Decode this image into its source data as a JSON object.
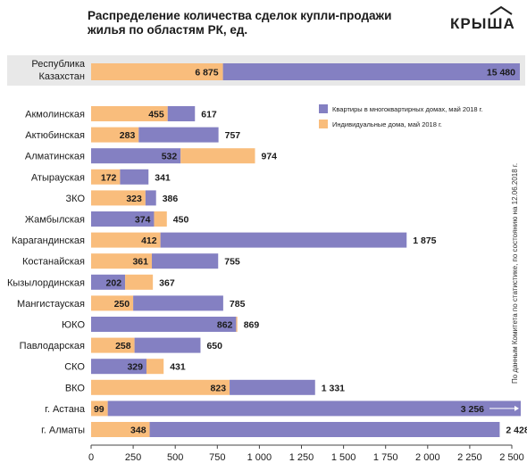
{
  "title_line1": "Распределение количества сделок купли-продажи",
  "title_line2": "жилья по областям РК, ед.",
  "logo_text": "КРЫША",
  "source_note": "По данным Комитета по статистике, по состоянию на 12.06.2018 г.",
  "colors": {
    "apartments": "#8480c2",
    "houses": "#f9bd7c",
    "republic_band": "#e8e8e8",
    "axis": "#444444"
  },
  "chart_data": {
    "type": "bar",
    "orientation": "horizontal",
    "stacked": true,
    "title": "Распределение количества сделок купли-продажи жилья по областям РК, ед.",
    "xlim": [
      0,
      2500
    ],
    "x_ticks": [
      0,
      250,
      500,
      750,
      1000,
      1250,
      1500,
      1750,
      2000,
      2250,
      2500
    ],
    "x_tick_labels": [
      "0",
      "250",
      "500",
      "750",
      "1 000",
      "1 250",
      "1 500",
      "1 750",
      "2 000",
      "2 250",
      "2 500"
    ],
    "legend_position": "top-right",
    "series": [
      {
        "key": "apartments",
        "name": "Квартиры в многоквартирных домах, май 2018 г."
      },
      {
        "key": "houses",
        "name": "Индивидуальные дома, май 2018 г."
      }
    ],
    "republic": {
      "label_lines": [
        "Республика",
        "Казахстан"
      ],
      "houses": 6875,
      "apartments": 15480,
      "houses_label": "6 875",
      "apartments_label": "15 480"
    },
    "regions": [
      {
        "name": "Акмолинская",
        "houses": 455,
        "apartments": 617,
        "first": "houses",
        "first_label": "455",
        "total_label": "617"
      },
      {
        "name": "Актюбинская",
        "houses": 283,
        "apartments": 757,
        "first": "houses",
        "first_label": "283",
        "total_label": "757"
      },
      {
        "name": "Алматинская",
        "houses": 974,
        "apartments": 532,
        "first": "apartments",
        "first_label": "532",
        "total_label": "974"
      },
      {
        "name": "Атырауская",
        "houses": 172,
        "apartments": 341,
        "first": "houses",
        "first_label": "172",
        "total_label": "341"
      },
      {
        "name": "ЗКО",
        "houses": 323,
        "apartments": 386,
        "first": "houses",
        "first_label": "323",
        "total_label": "386"
      },
      {
        "name": "Жамбылская",
        "houses": 450,
        "apartments": 374,
        "first": "apartments",
        "first_label": "374",
        "total_label": "450"
      },
      {
        "name": "Карагандинская",
        "houses": 412,
        "apartments": 1875,
        "first": "houses",
        "first_label": "412",
        "total_label": "1 875"
      },
      {
        "name": "Костанайская",
        "houses": 361,
        "apartments": 755,
        "first": "houses",
        "first_label": "361",
        "total_label": "755"
      },
      {
        "name": "Кызылординская",
        "houses": 367,
        "apartments": 202,
        "first": "apartments",
        "first_label": "202",
        "total_label": "367"
      },
      {
        "name": "Мангистауская",
        "houses": 250,
        "apartments": 785,
        "first": "houses",
        "first_label": "250",
        "total_label": "785"
      },
      {
        "name": "ЮКО",
        "houses": 869,
        "apartments": 862,
        "first": "apartments",
        "first_label": "862",
        "total_label": "869"
      },
      {
        "name": "Павлодарская",
        "houses": 258,
        "apartments": 650,
        "first": "houses",
        "first_label": "258",
        "total_label": "650"
      },
      {
        "name": "СКО",
        "houses": 431,
        "apartments": 329,
        "first": "apartments",
        "first_label": "329",
        "total_label": "431"
      },
      {
        "name": "ВКО",
        "houses": 823,
        "apartments": 1331,
        "first": "houses",
        "first_label": "823",
        "total_label": "1 331"
      },
      {
        "name": "г. Астана",
        "houses": 99,
        "apartments": 3256,
        "first": "houses",
        "first_label": "99",
        "total_label": "3 256",
        "truncated": true
      },
      {
        "name": "г. Алматы",
        "houses": 348,
        "apartments": 2428,
        "first": "houses",
        "first_label": "348",
        "total_label": "2 428"
      }
    ]
  }
}
